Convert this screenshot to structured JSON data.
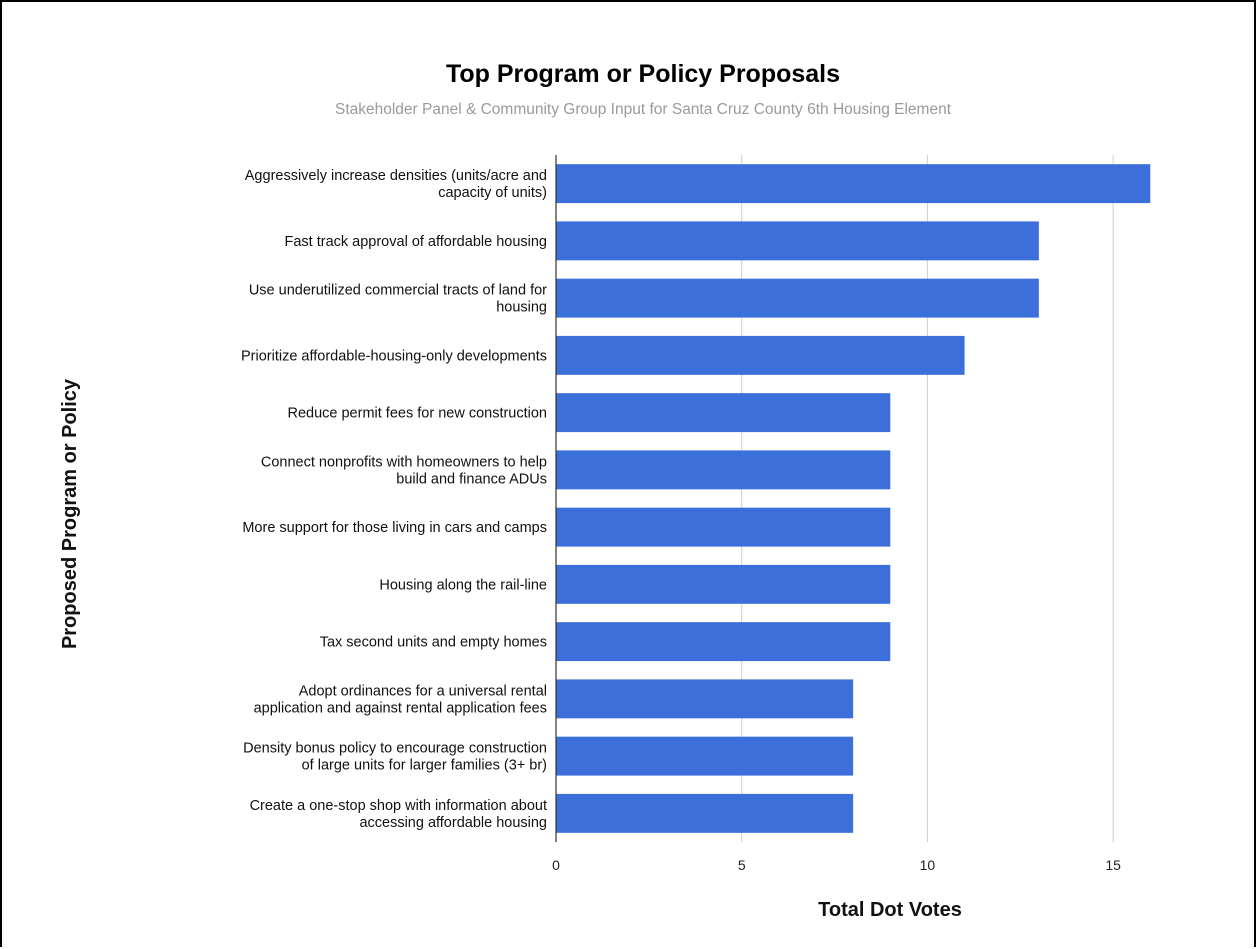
{
  "chart_data": {
    "type": "bar",
    "orientation": "horizontal",
    "title": "Top Program or Policy Proposals",
    "subtitle": "Stakeholder Panel & Community Group Input for Santa Cruz County 6th Housing Element",
    "xlabel": "Total Dot Votes",
    "ylabel": "Proposed Program or Policy",
    "xlim": [
      0,
      17.5
    ],
    "xticks": [
      0,
      5,
      10,
      15
    ],
    "grid": true,
    "legend": "none",
    "bar_color": "#3d6fdb",
    "categories": [
      [
        "Aggressively increase densities (units/acre and",
        "capacity of units)"
      ],
      [
        "Fast track approval of affordable housing"
      ],
      [
        "Use underutilized commercial tracts of land for",
        "housing"
      ],
      [
        "Prioritize affordable-housing-only developments"
      ],
      [
        "Reduce permit fees for new construction"
      ],
      [
        "Connect nonprofits with homeowners to help",
        "build and finance ADUs"
      ],
      [
        "More support for those living in cars and camps"
      ],
      [
        "Housing along the rail-line"
      ],
      [
        "Tax second units and empty homes"
      ],
      [
        "Adopt ordinances for a universal rental",
        "application and against rental application fees"
      ],
      [
        "Density bonus policy to encourage construction",
        "of large units for larger families (3+ br)"
      ],
      [
        "Create a one-stop shop with information about",
        "accessing affordable housing"
      ]
    ],
    "values": [
      16,
      13,
      13,
      11,
      9,
      9,
      9,
      9,
      9,
      8,
      8,
      8
    ]
  }
}
